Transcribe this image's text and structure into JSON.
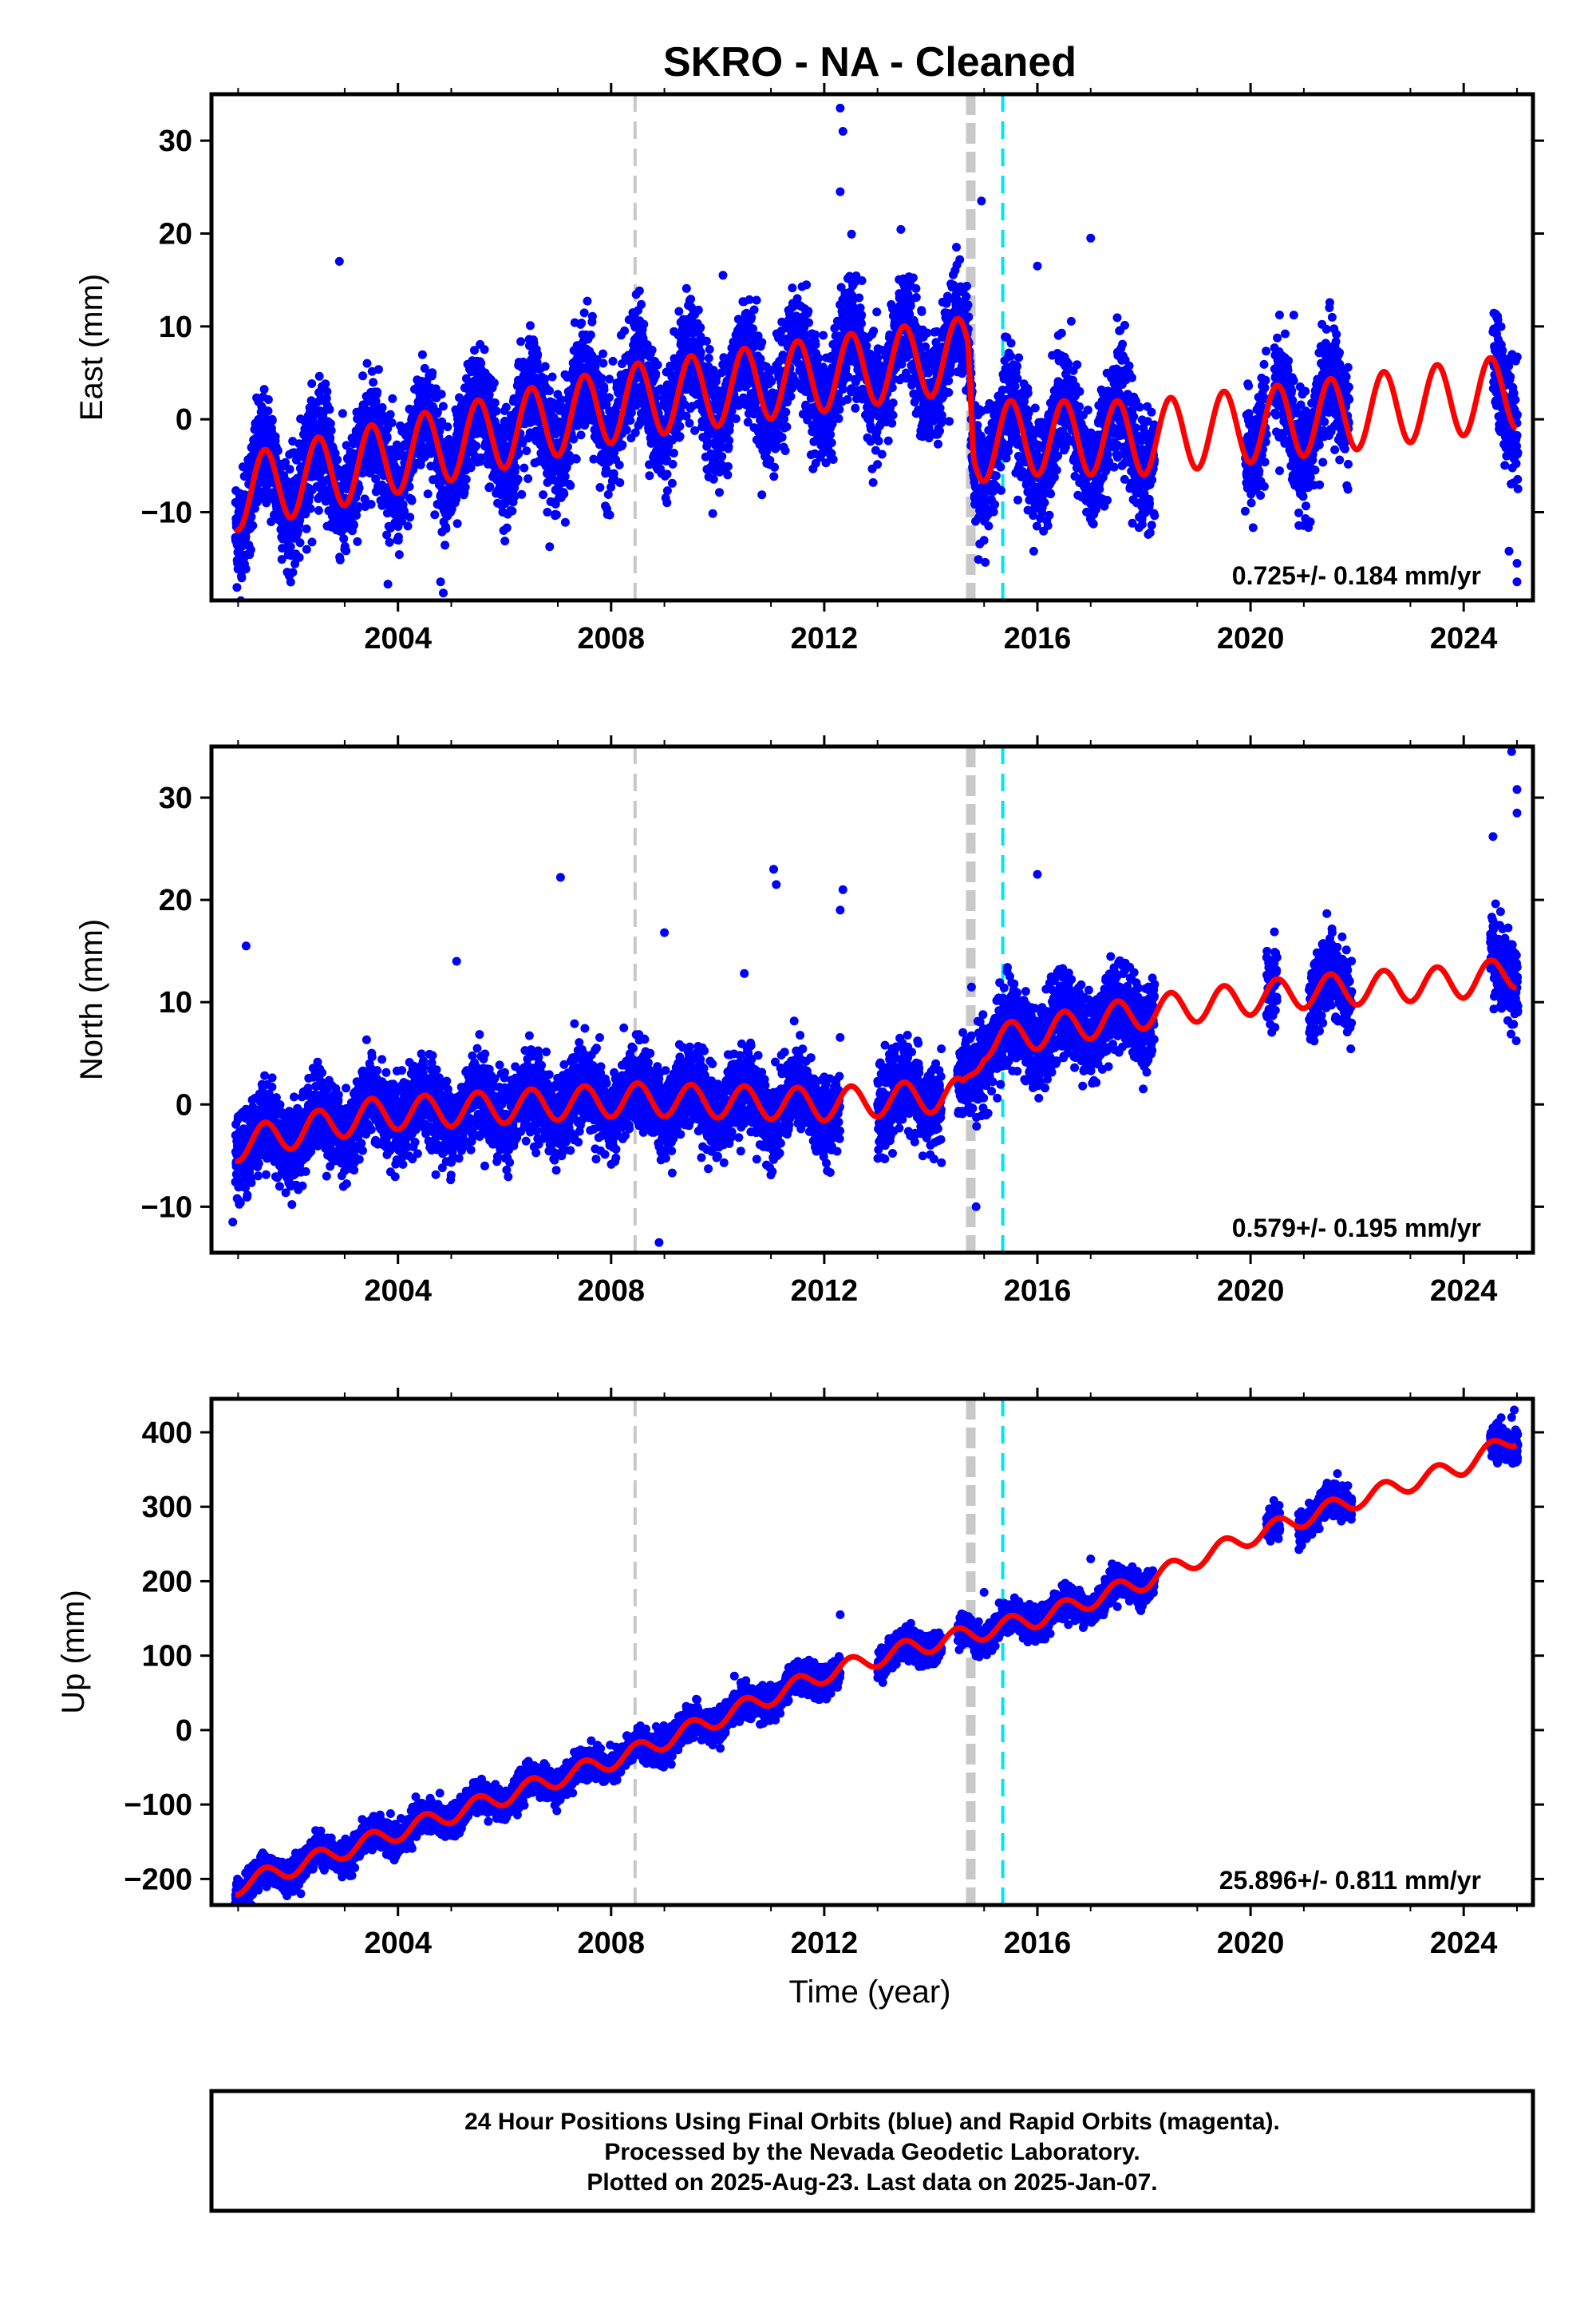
{
  "title": "SKRO  - NA - Cleaned",
  "xlabel": "Time (year)",
  "colors": {
    "data": "#0000ff",
    "model": "#ff0000",
    "marker_gray": "#c8c8c8",
    "marker_cyan": "#00e5ee",
    "frame": "#000000"
  },
  "footer": {
    "line1": "24 Hour Positions Using Final Orbits (blue) and Rapid Orbits (magenta).",
    "line2": "Processed by the Nevada Geodetic Laboratory.",
    "line3": "Plotted on 2025-Aug-23. Last data on 2025-Jan-07."
  },
  "chart_data": [
    {
      "type": "scatter",
      "component": "East",
      "ylabel": "East (mm)",
      "rate": "0.725+/- 0.184 mm/yr",
      "xlim": [
        2000.5,
        2025.3
      ],
      "ylim": [
        -19.5,
        35
      ],
      "xticks": [
        2004,
        2008,
        2012,
        2016,
        2020,
        2024
      ],
      "xtick_labels": [
        "2004",
        "2008",
        "2012",
        "2016",
        "2020",
        "2024"
      ],
      "yticks": [
        -10,
        0,
        10,
        20,
        30
      ],
      "ytick_labels": [
        "−10",
        "0",
        "10",
        "20",
        "30"
      ],
      "vlines": [
        {
          "x": 2008.45,
          "style": "gray-dashed-thin"
        },
        {
          "x": 2014.75,
          "style": "gray-dashed-thick"
        },
        {
          "x": 2015.35,
          "style": "cyan-dashed"
        }
      ],
      "data_segments": [
        [
          2000.95,
          2018.2
        ],
        [
          2019.9,
          2020.3
        ],
        [
          2020.45,
          2021.85
        ],
        [
          2024.55,
          2025.02
        ]
      ],
      "trend_points": [
        [
          2000.95,
          -8
        ],
        [
          2008.45,
          2
        ],
        [
          2014.7,
          7
        ],
        [
          2014.8,
          -3
        ],
        [
          2015.4,
          -2
        ],
        [
          2018.0,
          -2
        ],
        [
          2021.0,
          0
        ],
        [
          2025.0,
          3
        ]
      ],
      "seasonal_amplitude": 4,
      "noise": 3,
      "outliers": [
        [
          2012.3,
          33.5
        ],
        [
          2012.35,
          31
        ],
        [
          2012.3,
          24.5
        ],
        [
          2014.95,
          23.5
        ],
        [
          2017.0,
          19.5
        ],
        [
          2002.9,
          17
        ],
        [
          2010.1,
          15.5
        ],
        [
          2016.0,
          16.5
        ],
        [
          2004.8,
          -17.5
        ],
        [
          2004.85,
          -18.7
        ],
        [
          2024.85,
          -14.2
        ],
        [
          2025.0,
          -15.5
        ],
        [
          2025.0,
          -17.5
        ],
        [
          2003.0,
          -14
        ]
      ]
    },
    {
      "type": "scatter",
      "component": "North",
      "ylabel": "North (mm)",
      "rate": "0.579+/- 0.195 mm/yr",
      "xlim": [
        2000.5,
        2025.3
      ],
      "ylim": [
        -14.5,
        35
      ],
      "xticks": [
        2004,
        2008,
        2012,
        2016,
        2020,
        2024
      ],
      "xtick_labels": [
        "2004",
        "2008",
        "2012",
        "2016",
        "2020",
        "2024"
      ],
      "yticks": [
        -10,
        0,
        10,
        20,
        30
      ],
      "ytick_labels": [
        "−10",
        "0",
        "10",
        "20",
        "30"
      ],
      "vlines": [
        {
          "x": 2008.45,
          "style": "gray-dashed-thin"
        },
        {
          "x": 2014.75,
          "style": "gray-dashed-thick"
        },
        {
          "x": 2015.35,
          "style": "cyan-dashed"
        }
      ],
      "data_segments": [
        [
          2000.95,
          2012.3
        ],
        [
          2013.0,
          2014.2
        ],
        [
          2014.5,
          2018.2
        ],
        [
          2020.3,
          2020.5
        ],
        [
          2021.1,
          2021.9
        ],
        [
          2024.5,
          2025.02
        ]
      ],
      "trend_points": [
        [
          2000.95,
          -4
        ],
        [
          2003.5,
          -1
        ],
        [
          2008.45,
          0.5
        ],
        [
          2012.0,
          0
        ],
        [
          2014.6,
          1
        ],
        [
          2015.0,
          6
        ],
        [
          2018.0,
          9
        ],
        [
          2021.0,
          11
        ],
        [
          2024.0,
          12
        ],
        [
          2025.0,
          13
        ]
      ],
      "seasonal_amplitude": 1.6,
      "noise": 2,
      "outliers": [
        [
          2011.05,
          23
        ],
        [
          2011.1,
          21.5
        ],
        [
          2012.35,
          21
        ],
        [
          2012.3,
          19
        ],
        [
          2007.05,
          22.2
        ],
        [
          2016.0,
          22.5
        ],
        [
          2024.9,
          34.5
        ],
        [
          2025.0,
          30.8
        ],
        [
          2025.0,
          28.5
        ],
        [
          2024.55,
          26.2
        ],
        [
          2001.15,
          15.5
        ],
        [
          2008.9,
          -13.5
        ],
        [
          2014.85,
          -10
        ],
        [
          2000.9,
          -11.5
        ],
        [
          2005.1,
          14
        ],
        [
          2009.0,
          16.8
        ],
        [
          2010.5,
          12.8
        ]
      ]
    },
    {
      "type": "scatter",
      "component": "Up",
      "ylabel": "Up (mm)",
      "rate": "25.896+/- 0.811 mm/yr",
      "xlim": [
        2000.5,
        2025.3
      ],
      "ylim": [
        -235,
        445
      ],
      "xticks": [
        2004,
        2008,
        2012,
        2016,
        2020,
        2024
      ],
      "xtick_labels": [
        "2004",
        "2008",
        "2012",
        "2016",
        "2020",
        "2024"
      ],
      "yticks": [
        -200,
        -100,
        0,
        100,
        200,
        300,
        400
      ],
      "ytick_labels": [
        "−200",
        "−100",
        "0",
        "100",
        "200",
        "300",
        "400"
      ],
      "vlines": [
        {
          "x": 2008.45,
          "style": "gray-dashed-thin"
        },
        {
          "x": 2014.75,
          "style": "gray-dashed-thick"
        },
        {
          "x": 2015.35,
          "style": "cyan-dashed"
        }
      ],
      "data_segments": [
        [
          2000.95,
          2012.3
        ],
        [
          2013.0,
          2014.2
        ],
        [
          2014.5,
          2018.2
        ],
        [
          2020.3,
          2020.55
        ],
        [
          2020.9,
          2021.9
        ],
        [
          2024.5,
          2025.02
        ]
      ],
      "trend_points": [
        [
          2000.95,
          -210
        ],
        [
          2008.45,
          -30
        ],
        [
          2012.0,
          75
        ],
        [
          2013.5,
          108
        ],
        [
          2014.8,
          130
        ],
        [
          2016.0,
          150
        ],
        [
          2018.0,
          200
        ],
        [
          2020.0,
          260
        ],
        [
          2022.0,
          310
        ],
        [
          2024.0,
          355
        ],
        [
          2025.0,
          395
        ]
      ],
      "seasonal_amplitude": 12,
      "noise": 10,
      "outliers": [
        [
          2012.3,
          155
        ],
        [
          2015.0,
          185
        ],
        [
          2017.0,
          230
        ],
        [
          2024.95,
          430
        ],
        [
          2024.9,
          420
        ]
      ]
    }
  ]
}
